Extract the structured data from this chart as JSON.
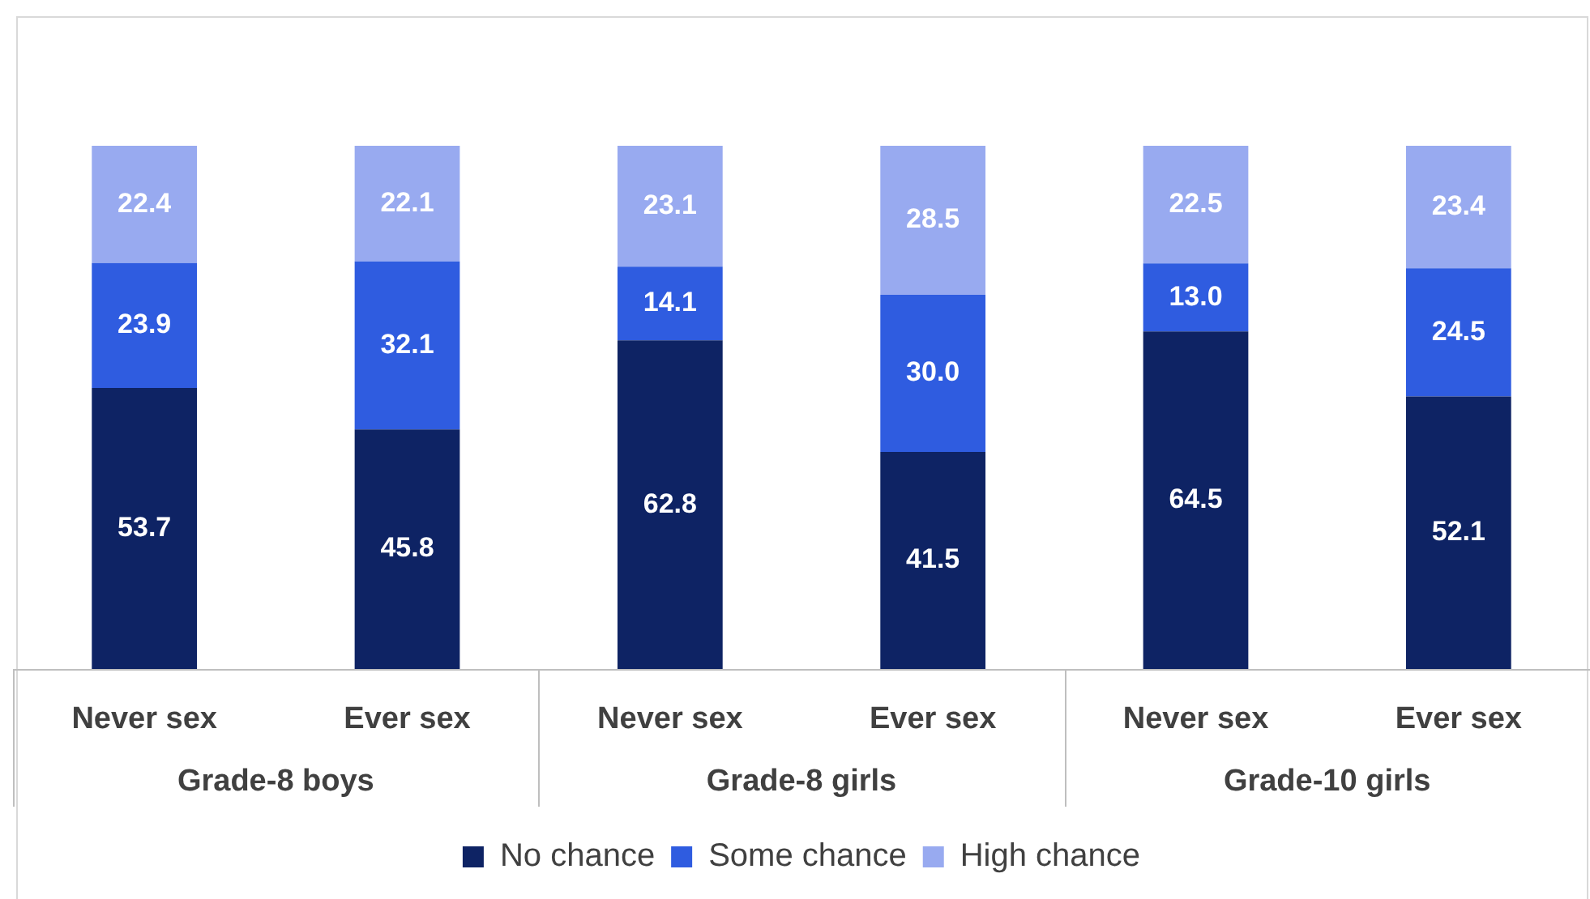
{
  "chart_data": {
    "type": "bar",
    "stacked": true,
    "grid": false,
    "legend": "bottom",
    "tick_labels": "x",
    "ylim": [
      0,
      100
    ],
    "categories": [
      "Never sex",
      "Ever sex",
      "Never sex",
      "Ever sex",
      "Never sex",
      "Ever sex"
    ],
    "annotations": [
      "Grade-8 boys",
      "Grade-8 girls",
      "Grade-10 girls"
    ],
    "series": [
      {
        "name": "No chance",
        "color": "#0e2364",
        "values": [
          53.7,
          45.8,
          62.8,
          41.5,
          64.5,
          52.1
        ],
        "value_labels": [
          "53.7",
          "45.8",
          "62.8",
          "41.5",
          "64.5",
          "52.1"
        ]
      },
      {
        "name": "Some chance",
        "color": "#2f5ce0",
        "values": [
          23.9,
          32.1,
          14.1,
          30.0,
          13.0,
          24.5
        ],
        "value_labels": [
          "23.9",
          "32.1",
          "14.1",
          "30.0",
          "13.0",
          "24.5"
        ]
      },
      {
        "name": "High chance",
        "color": "#98aaf0",
        "values": [
          22.4,
          22.1,
          23.1,
          28.5,
          22.5,
          23.4
        ],
        "value_labels": [
          "22.4",
          "22.1",
          "23.1",
          "28.5",
          "22.5",
          "23.4"
        ]
      }
    ]
  }
}
